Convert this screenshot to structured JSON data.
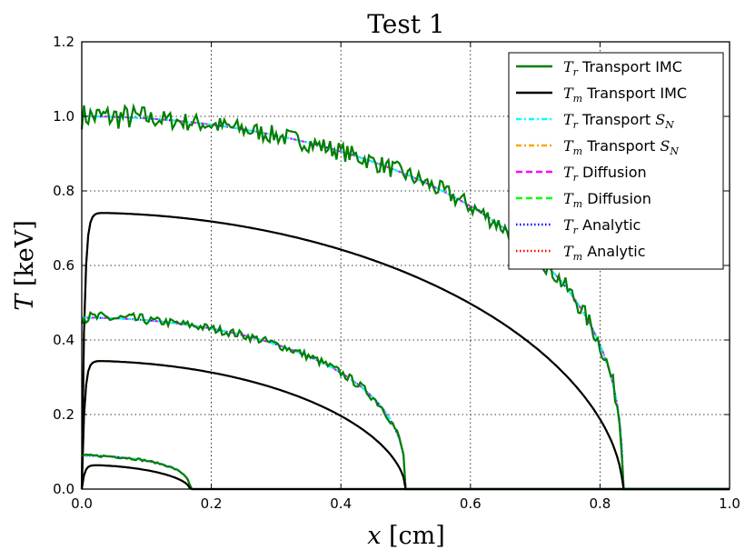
{
  "chart_data": {
    "type": "line",
    "title": "Test 1",
    "xlabel": {
      "var": "x",
      "unit": "[cm]"
    },
    "ylabel": {
      "var": "T",
      "unit": "[keV]"
    },
    "xlim": [
      0.0,
      1.0
    ],
    "ylim": [
      0.0,
      1.2
    ],
    "xticks": [
      "0.0",
      "0.2",
      "0.4",
      "0.6",
      "0.8",
      "1.0"
    ],
    "yticks": [
      "0.0",
      "0.2",
      "0.4",
      "0.6",
      "0.8",
      "1.0",
      "1.2"
    ],
    "grid": true,
    "legend_position": "top-right",
    "legend": [
      {
        "var": "T",
        "sub": "r",
        "text": "Transport IMC",
        "color": "#007f00",
        "style": "solid",
        "sub_label": ""
      },
      {
        "var": "T",
        "sub": "m",
        "text": "Transport IMC",
        "color": "#000000",
        "style": "solid",
        "sub_label": ""
      },
      {
        "var": "T",
        "sub": "r",
        "text": "Transport ",
        "color": "#00ffff",
        "style": "dashdot",
        "sub_label": "S",
        "sub2": "N"
      },
      {
        "var": "T",
        "sub": "m",
        "text": "Transport ",
        "color": "#ffa500",
        "style": "dashdot",
        "sub_label": "S",
        "sub2": "N"
      },
      {
        "var": "T",
        "sub": "r",
        "text": "Diffusion",
        "color": "#ff00ff",
        "style": "dashed",
        "sub_label": ""
      },
      {
        "var": "T",
        "sub": "m",
        "text": "Diffusion",
        "color": "#00ff00",
        "style": "dashed",
        "sub_label": ""
      },
      {
        "var": "T",
        "sub": "r",
        "text": "Analytic",
        "color": "#0000ff",
        "style": "dotted",
        "sub_label": ""
      },
      {
        "var": "T",
        "sub": "m",
        "text": "Analytic",
        "color": "#ff0000",
        "style": "dotted",
        "sub_label": ""
      }
    ],
    "families": [
      {
        "name": "Tr",
        "front": 0.835,
        "peak": 1.0,
        "peak_x": 0.0
      },
      {
        "name": "Tm",
        "front": 0.835,
        "peak": 0.745,
        "peak_x": 0.14
      },
      {
        "name": "Tr",
        "front": 0.5,
        "peak": 0.46,
        "peak_x": 0.0
      },
      {
        "name": "Tm",
        "front": 0.5,
        "peak": 0.345,
        "peak_x": 0.09
      },
      {
        "name": "Tr",
        "front": 0.167,
        "peak": 0.09,
        "peak_x": 0.0
      },
      {
        "name": "Tm",
        "front": 0.167,
        "peak": 0.065,
        "peak_x": 0.03
      }
    ]
  }
}
